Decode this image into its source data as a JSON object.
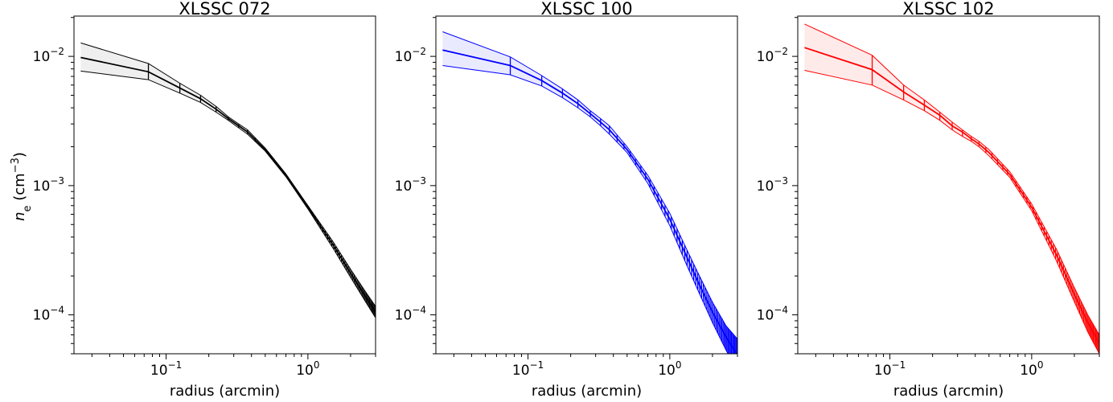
{
  "figure": {
    "ylabel_symbol": "n",
    "ylabel_subscript": "e",
    "ylabel_unit": " (cm",
    "ylabel_unit_exp": "−3",
    "ylabel_close": ")"
  },
  "chart_data": [
    {
      "type": "line",
      "title": "XLSSC 072",
      "xlabel": "radius (arcmin)",
      "x_scale": "log",
      "y_scale": "log",
      "xlim": [
        0.0224,
        3.0
      ],
      "ylim": [
        5e-05,
        0.0205
      ],
      "x_ticks": [
        {
          "value": 0.1,
          "base": "10",
          "exp": "−1"
        },
        {
          "value": 1.0,
          "base": "10",
          "exp": "0"
        }
      ],
      "y_ticks": [
        {
          "value": 0.0001,
          "base": "10",
          "exp": "−4"
        },
        {
          "value": 0.001,
          "base": "10",
          "exp": "−3"
        },
        {
          "value": 0.01,
          "base": "10",
          "exp": "−2"
        }
      ],
      "color": "#000000",
      "band_color": "#9a9a9a",
      "series": [
        {
          "role": "median",
          "x": [
            0.025,
            0.075,
            0.125,
            0.175,
            0.225,
            0.275,
            0.325,
            0.375,
            0.5,
            0.7,
            1.0,
            1.5,
            2.0,
            2.5,
            3.0
          ],
          "values": [
            0.0098,
            0.0076,
            0.0057,
            0.0047,
            0.0039,
            0.0033,
            0.0029,
            0.0026,
            0.0019,
            0.0012,
            0.00068,
            0.00035,
            0.00021,
            0.000143,
            0.000105
          ]
        },
        {
          "role": "upper",
          "x": [
            0.025,
            0.075,
            0.125,
            0.175,
            0.225,
            0.275,
            0.325,
            0.375,
            0.5,
            0.7,
            1.0,
            1.5,
            2.0,
            2.5,
            3.0
          ],
          "values": [
            0.0127,
            0.0088,
            0.0062,
            0.005,
            0.0041,
            0.0034,
            0.003,
            0.0027,
            0.00195,
            0.00123,
            0.0007,
            0.00037,
            0.000225,
            0.000156,
            0.000116
          ]
        },
        {
          "role": "lower",
          "x": [
            0.025,
            0.075,
            0.125,
            0.175,
            0.225,
            0.275,
            0.325,
            0.375,
            0.5,
            0.7,
            1.0,
            1.5,
            2.0,
            2.5,
            3.0
          ],
          "values": [
            0.0077,
            0.0066,
            0.0052,
            0.0044,
            0.0037,
            0.0032,
            0.0028,
            0.0025,
            0.00185,
            0.00117,
            0.00066,
            0.00033,
            0.000195,
            0.000131,
            9.5e-05
          ]
        }
      ],
      "errorbar_x": [
        0.075,
        0.125,
        0.175,
        0.225,
        0.275,
        0.325,
        0.375,
        0.425,
        0.475,
        0.525,
        0.575,
        0.625,
        0.675,
        0.725,
        0.775,
        0.825,
        0.875,
        0.925,
        0.975,
        1.025,
        1.075,
        1.125,
        1.175,
        1.225,
        1.275,
        1.325,
        1.375,
        1.425,
        1.475,
        1.525,
        1.575,
        1.625,
        1.675,
        1.725,
        1.775,
        1.825,
        1.875,
        1.925,
        1.975,
        2.025,
        2.075,
        2.125,
        2.175,
        2.225,
        2.275,
        2.325,
        2.375,
        2.425,
        2.475,
        2.525,
        2.575,
        2.625,
        2.675,
        2.725,
        2.775,
        2.825,
        2.875,
        2.925,
        2.975
      ]
    },
    {
      "type": "line",
      "title": "XLSSC 100",
      "xlabel": "radius (arcmin)",
      "x_scale": "log",
      "y_scale": "log",
      "xlim": [
        0.0224,
        3.0
      ],
      "ylim": [
        5e-05,
        0.0205
      ],
      "x_ticks": [
        {
          "value": 0.1,
          "base": "10",
          "exp": "−1"
        },
        {
          "value": 1.0,
          "base": "10",
          "exp": "0"
        }
      ],
      "y_ticks": [
        {
          "value": 0.0001,
          "base": "10",
          "exp": "−4"
        },
        {
          "value": 0.001,
          "base": "10",
          "exp": "−3"
        },
        {
          "value": 0.01,
          "base": "10",
          "exp": "−2"
        }
      ],
      "color": "#0000ff",
      "band_color": "#7f7fff",
      "series": [
        {
          "role": "median",
          "x": [
            0.025,
            0.075,
            0.125,
            0.175,
            0.225,
            0.275,
            0.325,
            0.375,
            0.5,
            0.7,
            1.0,
            1.3,
            1.6,
            2.0,
            2.5,
            3.0
          ],
          "values": [
            0.0112,
            0.0085,
            0.0065,
            0.0052,
            0.0043,
            0.0036,
            0.0031,
            0.0027,
            0.0019,
            0.00112,
            0.00055,
            0.00029,
            0.000175,
            0.000105,
            6.7e-05,
            4.9e-05
          ]
        },
        {
          "role": "upper",
          "x": [
            0.025,
            0.075,
            0.125,
            0.175,
            0.225,
            0.275,
            0.325,
            0.375,
            0.5,
            0.7,
            1.0,
            1.3,
            1.6,
            2.0,
            2.5,
            3.0
          ],
          "values": [
            0.0155,
            0.0099,
            0.0071,
            0.0056,
            0.0046,
            0.0038,
            0.0033,
            0.0029,
            0.002,
            0.0012,
            0.00061,
            0.00033,
            0.000205,
            0.000125,
            8.2e-05,
            6.5e-05
          ]
        },
        {
          "role": "lower",
          "x": [
            0.025,
            0.075,
            0.125,
            0.175,
            0.225,
            0.275,
            0.325,
            0.375,
            0.5,
            0.7,
            1.0,
            1.3,
            1.6,
            2.0,
            2.5,
            3.0
          ],
          "values": [
            0.0085,
            0.0072,
            0.0059,
            0.0048,
            0.004,
            0.0034,
            0.0029,
            0.0025,
            0.0018,
            0.00104,
            0.00049,
            0.00025,
            0.00015,
            8.7e-05,
            5.3e-05,
            3.7e-05
          ]
        }
      ],
      "errorbar_x": [
        0.075,
        0.125,
        0.175,
        0.225,
        0.275,
        0.325,
        0.375,
        0.425,
        0.475,
        0.525,
        0.575,
        0.625,
        0.675,
        0.725,
        0.775,
        0.825,
        0.875,
        0.925,
        0.975,
        1.025,
        1.075,
        1.125,
        1.175,
        1.225,
        1.275,
        1.325,
        1.375,
        1.425,
        1.475,
        1.525,
        1.575,
        1.625,
        1.675,
        1.725,
        1.775,
        1.825,
        1.875,
        1.925,
        1.975,
        2.025,
        2.075,
        2.125,
        2.175,
        2.225,
        2.275,
        2.325,
        2.375,
        2.425,
        2.475,
        2.525,
        2.575,
        2.625,
        2.675,
        2.725,
        2.775,
        2.825,
        2.875,
        2.925,
        2.975
      ]
    },
    {
      "type": "line",
      "title": "XLSSC 102",
      "xlabel": "radius (arcmin)",
      "x_scale": "log",
      "y_scale": "log",
      "xlim": [
        0.0224,
        3.0
      ],
      "ylim": [
        5e-05,
        0.0205
      ],
      "x_ticks": [
        {
          "value": 0.1,
          "base": "10",
          "exp": "−1"
        },
        {
          "value": 1.0,
          "base": "10",
          "exp": "0"
        }
      ],
      "y_ticks": [
        {
          "value": 0.0001,
          "base": "10",
          "exp": "−4"
        },
        {
          "value": 0.001,
          "base": "10",
          "exp": "−3"
        },
        {
          "value": 0.01,
          "base": "10",
          "exp": "−2"
        }
      ],
      "color": "#ff0000",
      "band_color": "#ff7f7f",
      "series": [
        {
          "role": "median",
          "x": [
            0.025,
            0.075,
            0.125,
            0.175,
            0.225,
            0.275,
            0.325,
            0.375,
            0.425,
            0.5,
            0.7,
            1.0,
            1.5,
            2.0,
            2.5,
            3.0
          ],
          "values": [
            0.0117,
            0.0079,
            0.0053,
            0.0042,
            0.0035,
            0.0029,
            0.0026,
            0.0023,
            0.0021,
            0.0018,
            0.00122,
            0.00068,
            0.00029,
            0.000144,
            8.6e-05,
            6e-05
          ]
        },
        {
          "role": "upper",
          "x": [
            0.025,
            0.075,
            0.125,
            0.175,
            0.225,
            0.275,
            0.325,
            0.375,
            0.425,
            0.5,
            0.7,
            1.0,
            1.5,
            2.0,
            2.5,
            3.0
          ],
          "values": [
            0.0178,
            0.0102,
            0.006,
            0.0046,
            0.0037,
            0.0031,
            0.0027,
            0.0024,
            0.0022,
            0.0019,
            0.00128,
            0.00072,
            0.00032,
            0.000162,
            9.9e-05,
            7e-05
          ]
        },
        {
          "role": "lower",
          "x": [
            0.025,
            0.075,
            0.125,
            0.175,
            0.225,
            0.275,
            0.325,
            0.375,
            0.425,
            0.5,
            0.7,
            1.0,
            1.5,
            2.0,
            2.5,
            3.0
          ],
          "values": [
            0.0078,
            0.006,
            0.0046,
            0.0038,
            0.0032,
            0.0027,
            0.0024,
            0.0022,
            0.002,
            0.0017,
            0.00116,
            0.00064,
            0.00026,
            0.000126,
            7.3e-05,
            5e-05
          ]
        }
      ],
      "errorbar_x": [
        0.075,
        0.125,
        0.175,
        0.225,
        0.275,
        0.325,
        0.375,
        0.425,
        0.475,
        0.525,
        0.575,
        0.625,
        0.675,
        0.725,
        0.775,
        0.825,
        0.875,
        0.925,
        0.975,
        1.025,
        1.075,
        1.125,
        1.175,
        1.225,
        1.275,
        1.325,
        1.375,
        1.425,
        1.475,
        1.525,
        1.575,
        1.625,
        1.675,
        1.725,
        1.775,
        1.825,
        1.875,
        1.925,
        1.975,
        2.025,
        2.075,
        2.125,
        2.175,
        2.225,
        2.275,
        2.325,
        2.375,
        2.425,
        2.475,
        2.525,
        2.575,
        2.625,
        2.675,
        2.725,
        2.775,
        2.825,
        2.875,
        2.925,
        2.975
      ]
    }
  ]
}
